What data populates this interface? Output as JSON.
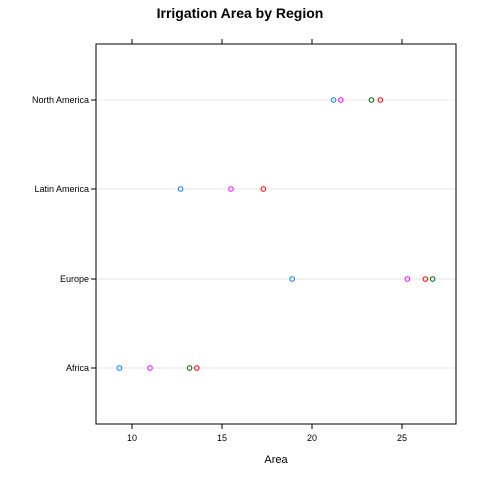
{
  "chart_data": {
    "type": "scatter",
    "title": "Irrigation Area by Region",
    "xlabel": "Area",
    "ylabel": "",
    "xlim": [
      8,
      28
    ],
    "x_ticks": [
      10,
      15,
      20,
      25
    ],
    "categories": [
      "North America",
      "Latin America",
      "Europe",
      "Africa"
    ],
    "grid": true,
    "legend": "none",
    "series": [
      {
        "color": "#0080ff",
        "values": [
          21.2,
          12.7,
          18.9,
          9.3
        ]
      },
      {
        "color": "#ff00ff",
        "values": [
          21.6,
          15.5,
          25.3,
          11.0
        ]
      },
      {
        "color": "#006400",
        "values": [
          23.3,
          null,
          26.7,
          13.2
        ]
      },
      {
        "color": "#ff0000",
        "values": [
          23.8,
          17.3,
          26.3,
          13.6
        ]
      }
    ]
  }
}
